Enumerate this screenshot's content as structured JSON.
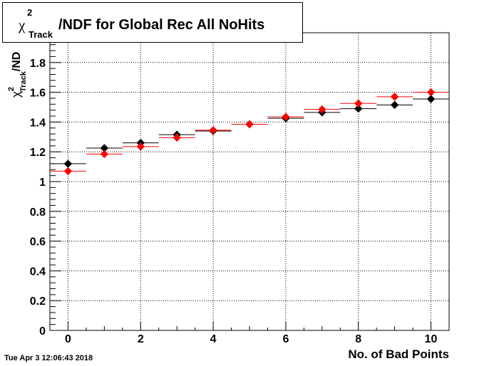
{
  "chart_data": {
    "type": "scatter",
    "title_parts": {
      "chi": "χ",
      "sup": "2",
      "sub": "Track",
      "rest": "/NDF for Global Rec All NoHits"
    },
    "xlabel": "No. of Bad Points",
    "ylabel_parts": {
      "chi": "χ",
      "sup": "2",
      "sub": "Track",
      "rest": "/ND"
    },
    "xlim": [
      -0.5,
      10.5
    ],
    "ylim": [
      0,
      2
    ],
    "x_ticks": [
      "0",
      "2",
      "4",
      "6",
      "8",
      "10"
    ],
    "y_ticks": [
      "0",
      "0.2",
      "0.4",
      "0.6",
      "0.8",
      "1",
      "1.2",
      "1.4",
      "1.6",
      "1.8"
    ],
    "grid": true,
    "series": [
      {
        "color": "#000000",
        "x": [
          0,
          1,
          2,
          3,
          4,
          5,
          6,
          7,
          8,
          9,
          10
        ],
        "y": [
          1.12,
          1.225,
          1.26,
          1.315,
          1.34,
          1.385,
          1.425,
          1.465,
          1.49,
          1.515,
          1.555
        ]
      },
      {
        "color": "#ff0000",
        "x": [
          0,
          1,
          2,
          3,
          4,
          5,
          6,
          7,
          8,
          9,
          10
        ],
        "y": [
          1.07,
          1.185,
          1.235,
          1.295,
          1.345,
          1.385,
          1.435,
          1.485,
          1.525,
          1.57,
          1.6
        ]
      }
    ]
  },
  "timestamp": "Tue Apr  3 12:06:43 2018"
}
